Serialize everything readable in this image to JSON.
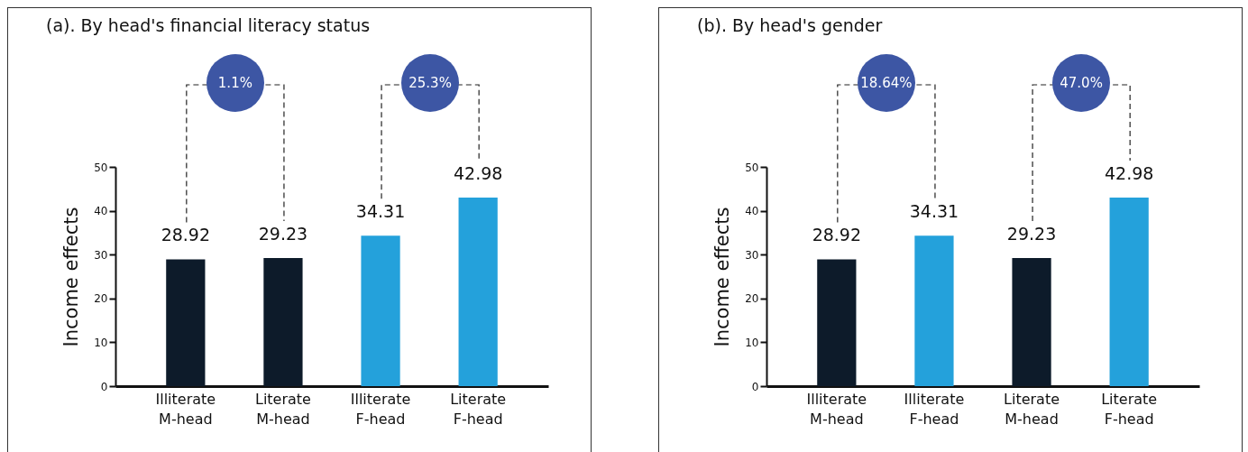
{
  "chart_data": [
    {
      "type": "bar",
      "title": "(a). By head's financial literacy status",
      "ylabel": "Income effects",
      "categories": [
        "Illiterate M-head",
        "Literate M-head",
        "Illiterate F-head",
        "Literate F-head"
      ],
      "values": [
        28.92,
        29.23,
        34.31,
        42.98
      ],
      "colors": [
        "#0d1b2a",
        "#0d1b2a",
        "#24a1db",
        "#24a1db"
      ],
      "ylim": [
        0,
        50
      ],
      "yticks": [
        0,
        10,
        20,
        30,
        40,
        50
      ],
      "grid": false,
      "data_labels": true,
      "annotations": [
        "1.1%",
        "25.3%"
      ]
    },
    {
      "type": "bar",
      "title": "(b). By head's gender",
      "ylabel": "Income effects",
      "categories": [
        "Illiterate M-head",
        "Illiterate F-head",
        "Literate M-head",
        "Literate F-head"
      ],
      "values": [
        28.92,
        34.31,
        29.23,
        42.98
      ],
      "colors": [
        "#0d1b2a",
        "#24a1db",
        "#0d1b2a",
        "#24a1db"
      ],
      "ylim": [
        0,
        50
      ],
      "yticks": [
        0,
        10,
        20,
        30,
        40,
        50
      ],
      "grid": false,
      "data_labels": true,
      "annotations": [
        "18.64%",
        "47.0%"
      ]
    }
  ]
}
